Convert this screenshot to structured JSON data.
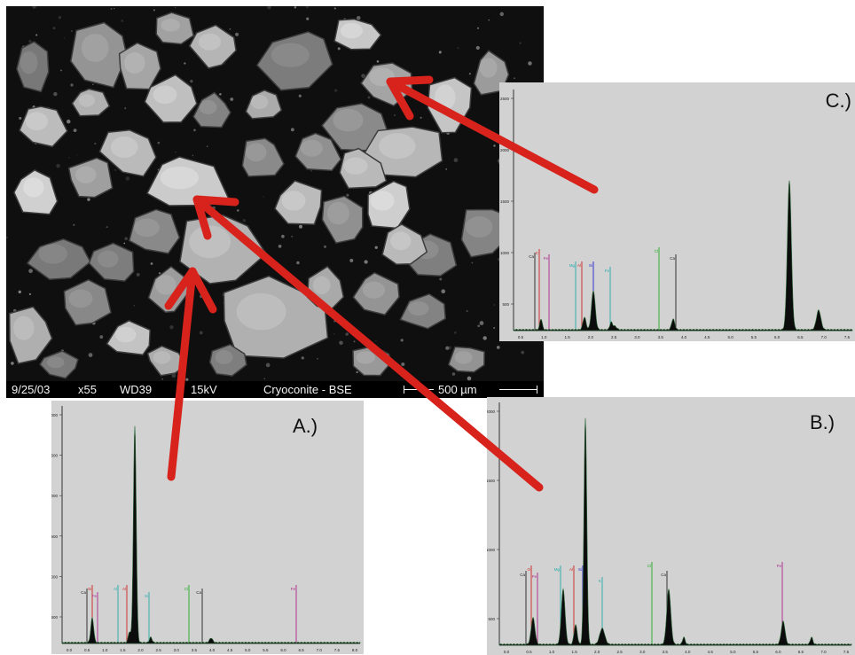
{
  "sem_image": {
    "date": "9/25/03",
    "magnification": "x55",
    "working_distance": "WD39",
    "voltage": "15kV",
    "sample": "Cryoconite - BSE",
    "scale_bar": "500 µm"
  },
  "panels": [
    {
      "label": "C.)",
      "y_ticks": [
        "2500",
        "2000",
        "1500",
        "1000",
        "500"
      ],
      "x_ticks": [
        "0.5",
        "1.0",
        "1.5",
        "2.0",
        "2.5",
        "3.0",
        "3.5",
        "4.0",
        "4.5",
        "5.0",
        "5.5",
        "6.0",
        "6.5",
        "7.0",
        "7.5"
      ],
      "element_lines": [
        {
          "label": "Ca",
          "color": "#222222"
        },
        {
          "label": "C",
          "color": "#cc2222"
        },
        {
          "label": "Fe",
          "color": "#aa2288"
        },
        {
          "label": "Mg",
          "color": "#22aaaa"
        },
        {
          "label": "Al",
          "color": "#cc2222"
        },
        {
          "label": "Si",
          "color": "#2222cc"
        },
        {
          "label": "Fe",
          "color": "#22aaaa"
        },
        {
          "label": "Cl",
          "color": "#22aa22"
        },
        {
          "label": "Ca",
          "color": "#222222"
        }
      ]
    },
    {
      "label": "A.)",
      "y_ticks": [
        "3000",
        "2500",
        "2000",
        "1500",
        "1000",
        "500"
      ],
      "x_ticks": [
        "0.0",
        "0.5",
        "1.0",
        "1.5",
        "2.0",
        "2.5",
        "3.0",
        "3.5",
        "4.0",
        "4.5",
        "5.0",
        "5.5",
        "6.0",
        "6.5",
        "7.0",
        "7.5",
        "8.0"
      ],
      "element_lines": [
        {
          "label": "Ca",
          "color": "#222222"
        },
        {
          "label": "Si",
          "color": "#cc2222"
        },
        {
          "label": "Fe",
          "color": "#aa2288"
        },
        {
          "label": "Al",
          "color": "#22aaaa"
        },
        {
          "label": "Al",
          "color": "#cc2222"
        },
        {
          "label": "Si",
          "color": "#22aaaa"
        },
        {
          "label": "Cl",
          "color": "#22aa22"
        },
        {
          "label": "Ca",
          "color": "#222222"
        },
        {
          "label": "Fe",
          "color": "#aa2288"
        }
      ]
    },
    {
      "label": "B.)",
      "y_ticks": [
        "2000",
        "1500",
        "1000",
        "500"
      ],
      "x_ticks": [
        "0.0",
        "0.5",
        "1.0",
        "1.5",
        "2.0",
        "2.5",
        "3.0",
        "3.5",
        "4.0",
        "4.5",
        "5.0",
        "5.5",
        "6.0",
        "6.5",
        "7.0",
        "7.5"
      ],
      "element_lines": [
        {
          "label": "Ca",
          "color": "#222222"
        },
        {
          "label": "O",
          "color": "#cc2222"
        },
        {
          "label": "Fe",
          "color": "#aa2288"
        },
        {
          "label": "Mg",
          "color": "#22aaaa"
        },
        {
          "label": "Al",
          "color": "#cc2222"
        },
        {
          "label": "Si",
          "color": "#2222cc"
        },
        {
          "label": "K",
          "color": "#22aaaa"
        },
        {
          "label": "Cl",
          "color": "#22aa22"
        },
        {
          "label": "Ca",
          "color": "#222222"
        },
        {
          "label": "Fe",
          "color": "#aa2288"
        }
      ]
    }
  ],
  "colors": {
    "arrow": "#d8231d",
    "spectrum_bg": "#d2d2d2",
    "spectrum_fill": "#0c0c0c",
    "peak_tint": "#2f6a3a"
  }
}
